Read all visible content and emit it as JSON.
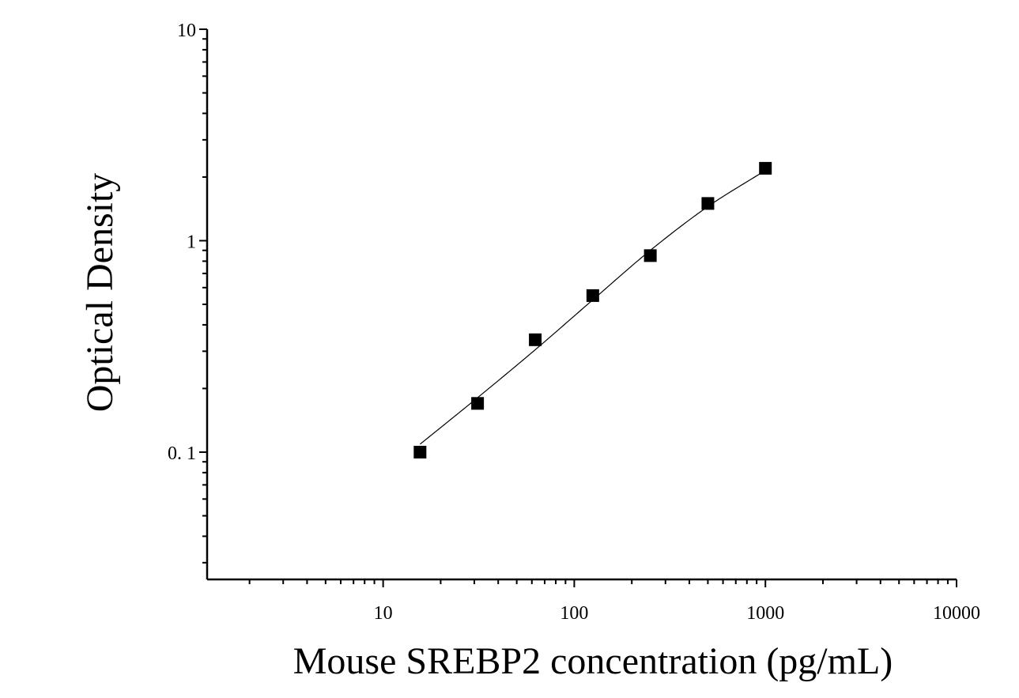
{
  "chart_data": {
    "type": "scatter",
    "title": "",
    "xlabel": "Mouse SREBP2 concentration (pg/mL)",
    "ylabel": "Optical Density",
    "x_scale": "log",
    "y_scale": "log",
    "xlim": [
      1.2,
      10000
    ],
    "ylim": [
      0.025,
      10
    ],
    "x_ticks": [
      {
        "value": 10,
        "label": "10"
      },
      {
        "value": 100,
        "label": "100"
      },
      {
        "value": 1000,
        "label": "1000"
      },
      {
        "value": 10000,
        "label": "10000"
      }
    ],
    "y_ticks": [
      {
        "value": 0.1,
        "label": "0. 1"
      },
      {
        "value": 1,
        "label": "1"
      },
      {
        "value": 10,
        "label": "10"
      }
    ],
    "grid": false,
    "legend": "none",
    "series": [
      {
        "marker": "square",
        "color": "#000000",
        "x": [
          15.6,
          31.2,
          62.5,
          125,
          250,
          500,
          1000
        ],
        "y": [
          0.1,
          0.17,
          0.34,
          0.55,
          0.85,
          1.5,
          2.2
        ]
      }
    ],
    "fit_curve": {
      "style": "smooth line",
      "color": "#000000",
      "x": [
        15.6,
        31.2,
        62.5,
        125,
        250,
        500,
        1000
      ],
      "y": [
        0.109,
        0.181,
        0.305,
        0.525,
        0.9,
        1.45,
        2.15
      ]
    }
  }
}
